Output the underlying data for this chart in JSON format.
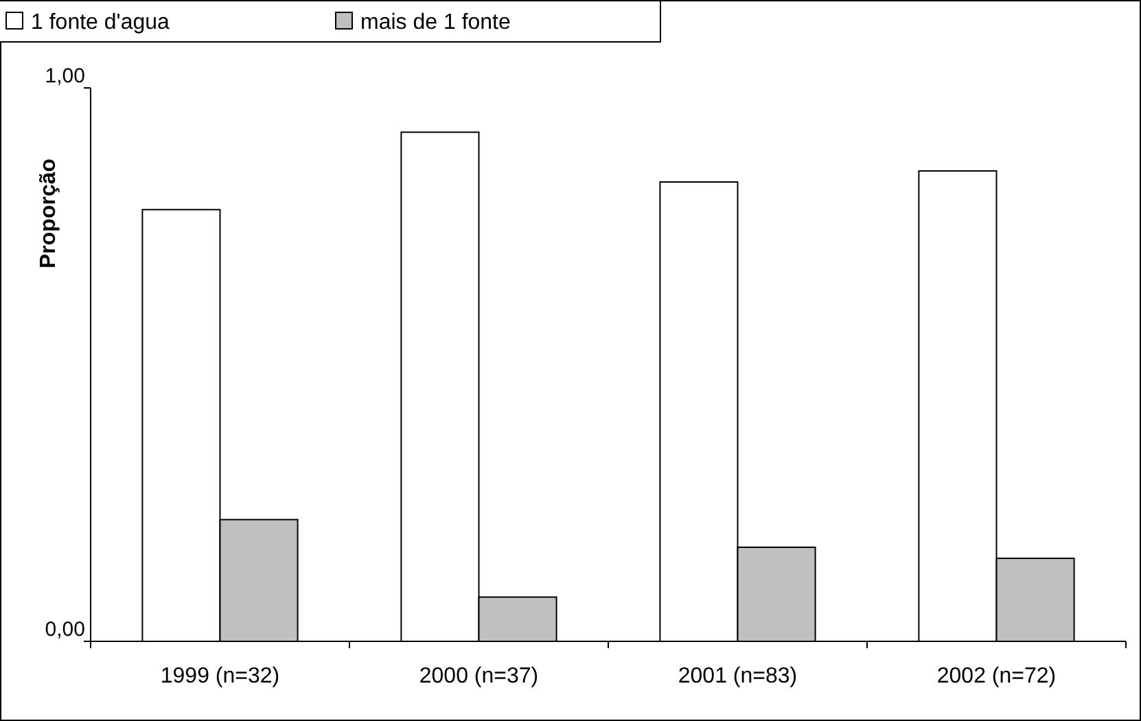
{
  "chart_data": {
    "type": "bar",
    "ylabel": "Proporção",
    "categories": [
      "1999 (n=32)",
      "2000 (n=37)",
      "2001 (n=83)",
      "2002 (n=72)"
    ],
    "series": [
      {
        "name": "1 fonte d'agua",
        "color": "#ffffff",
        "values": [
          0.78,
          0.92,
          0.83,
          0.85
        ]
      },
      {
        "name": "mais de 1 fonte",
        "color": "#c0c0c0",
        "values": [
          0.22,
          0.08,
          0.17,
          0.15
        ]
      }
    ],
    "ylim": [
      0,
      1
    ],
    "yticks": [
      {
        "value": 0,
        "label": "0,00"
      },
      {
        "value": 1,
        "label": "1,00"
      }
    ],
    "grid": false,
    "legend": "top"
  }
}
